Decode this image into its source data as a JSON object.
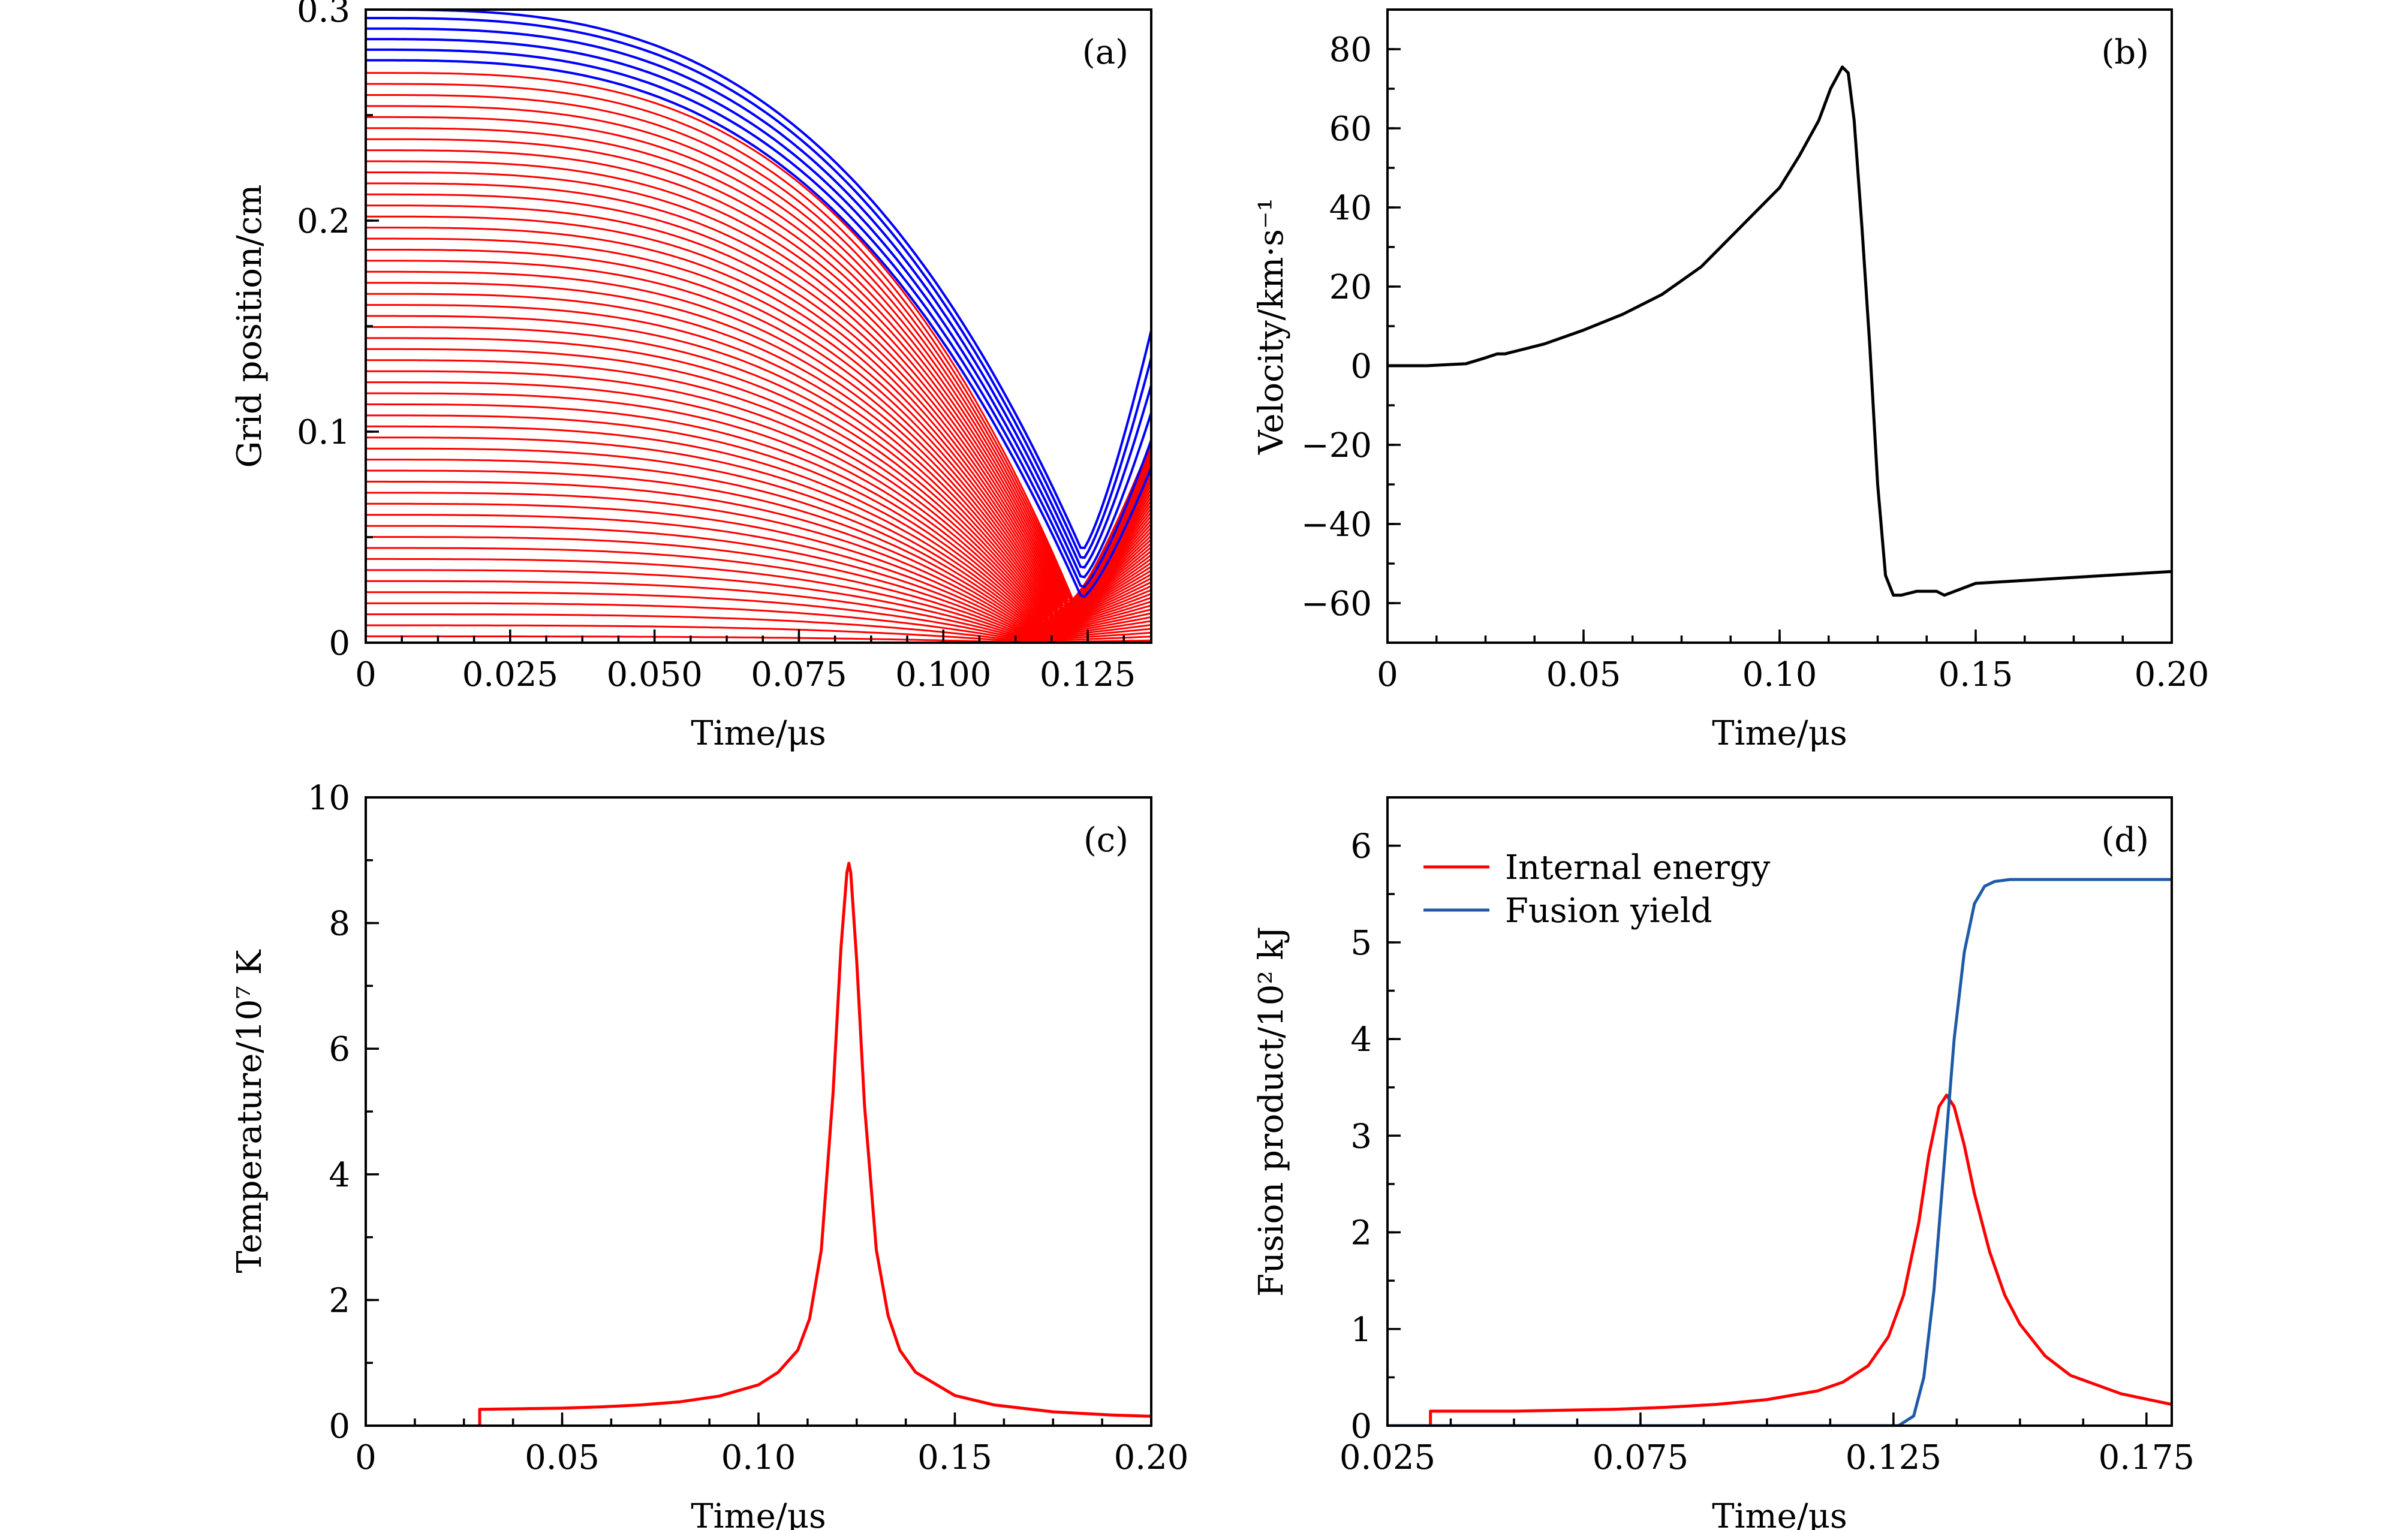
{
  "chart_data": [
    {
      "type": "line",
      "panel_label": "(a)",
      "xlabel": "Time/μs",
      "ylabel": "Grid position/cm",
      "xlim": [
        0,
        0.136
      ],
      "ylim": [
        0,
        0.3
      ],
      "xticks": [
        0,
        0.025,
        0.05,
        0.075,
        0.1,
        0.125
      ],
      "xtick_labels": [
        "0",
        "0.025",
        "0.050",
        "0.075",
        "0.100",
        "0.125"
      ],
      "yticks": [
        0,
        0.1,
        0.2,
        0.3
      ],
      "ytick_labels": [
        "0",
        "0.1",
        "0.2",
        "0.3"
      ],
      "series": [
        {
          "name": "fuel grid lines",
          "color": "#ff0000",
          "count": 52,
          "r0_range": [
            0.003,
            0.27
          ]
        },
        {
          "name": "liner grid lines",
          "color": "#0000ff",
          "r0": [
            0.276,
            0.281,
            0.286,
            0.291,
            0.296,
            0.3
          ]
        }
      ]
    },
    {
      "type": "line",
      "panel_label": "(b)",
      "xlabel": "Time/μs",
      "ylabel": "Velocity/km·s⁻¹",
      "xlim": [
        0,
        0.2
      ],
      "ylim": [
        -70,
        90
      ],
      "xticks": [
        0,
        0.05,
        0.1,
        0.15,
        0.2
      ],
      "xtick_labels": [
        "0",
        "0.05",
        "0.10",
        "0.15",
        "0.20"
      ],
      "yticks": [
        -60,
        -40,
        -20,
        0,
        20,
        40,
        60,
        80
      ],
      "ytick_labels": [
        "−60",
        "−40",
        "−20",
        "0",
        "20",
        "40",
        "60",
        "80"
      ],
      "series": [
        {
          "name": "velocity",
          "color": "#000000",
          "x": [
            0,
            0.01,
            0.02,
            0.025,
            0.028,
            0.03,
            0.04,
            0.05,
            0.06,
            0.07,
            0.08,
            0.09,
            0.1,
            0.105,
            0.11,
            0.113,
            0.116,
            0.1175,
            0.119,
            0.121,
            0.123,
            0.125,
            0.127,
            0.129,
            0.131,
            0.135,
            0.14,
            0.142,
            0.15,
            0.175,
            0.2
          ],
          "y": [
            0,
            0,
            0.5,
            2,
            3,
            3,
            5.5,
            9,
            13,
            18,
            25,
            35,
            45,
            53,
            62,
            70,
            75.5,
            74,
            62,
            35,
            5,
            -30,
            -53,
            -58,
            -58,
            -57,
            -57,
            -58,
            -55,
            -53.5,
            -52
          ]
        }
      ]
    },
    {
      "type": "line",
      "panel_label": "(c)",
      "xlabel": "Time/μs",
      "ylabel": "Temperature/10⁷ K",
      "xlim": [
        0,
        0.2
      ],
      "ylim": [
        0,
        10
      ],
      "xticks": [
        0,
        0.05,
        0.1,
        0.15,
        0.2
      ],
      "xtick_labels": [
        "0",
        "0.05",
        "0.10",
        "0.15",
        "0.20"
      ],
      "yticks": [
        0,
        2,
        4,
        6,
        8,
        10
      ],
      "ytick_labels": [
        "0",
        "2",
        "4",
        "6",
        "8",
        "10"
      ],
      "series": [
        {
          "name": "temperature",
          "color": "#ff0000",
          "x": [
            0.029,
            0.029,
            0.04,
            0.05,
            0.06,
            0.07,
            0.08,
            0.09,
            0.1,
            0.105,
            0.11,
            0.113,
            0.116,
            0.119,
            0.121,
            0.1225,
            0.123,
            0.1235,
            0.125,
            0.127,
            0.13,
            0.133,
            0.136,
            0.14,
            0.15,
            0.16,
            0.175,
            0.19,
            0.2
          ],
          "y": [
            0,
            0.26,
            0.27,
            0.28,
            0.3,
            0.33,
            0.38,
            0.47,
            0.65,
            0.85,
            1.2,
            1.7,
            2.8,
            5.3,
            7.6,
            8.8,
            8.95,
            8.8,
            7.4,
            5.1,
            2.8,
            1.75,
            1.2,
            0.85,
            0.48,
            0.33,
            0.22,
            0.17,
            0.15
          ]
        }
      ]
    },
    {
      "type": "line",
      "panel_label": "(d)",
      "xlabel": "Time/μs",
      "ylabel": "Fusion product/10² kJ",
      "xlim": [
        0.025,
        0.18
      ],
      "ylim": [
        0,
        6.5
      ],
      "xticks": [
        0.025,
        0.075,
        0.125,
        0.175
      ],
      "xtick_labels": [
        "0.025",
        "0.075",
        "0.125",
        "0.175"
      ],
      "yticks": [
        0,
        1,
        2,
        3,
        4,
        5,
        6
      ],
      "ytick_labels": [
        "0",
        "1",
        "2",
        "3",
        "4",
        "5",
        "6"
      ],
      "legend": "top-left",
      "series": [
        {
          "name": "Internal energy",
          "color": "#ff0000",
          "x": [
            0.0335,
            0.0335,
            0.05,
            0.07,
            0.08,
            0.09,
            0.1,
            0.11,
            0.115,
            0.12,
            0.124,
            0.127,
            0.13,
            0.132,
            0.134,
            0.1355,
            0.137,
            0.139,
            0.141,
            0.144,
            0.147,
            0.15,
            0.155,
            0.16,
            0.17,
            0.18
          ],
          "y": [
            0,
            0.15,
            0.15,
            0.17,
            0.19,
            0.22,
            0.27,
            0.36,
            0.45,
            0.62,
            0.92,
            1.35,
            2.1,
            2.8,
            3.3,
            3.42,
            3.3,
            2.9,
            2.4,
            1.8,
            1.35,
            1.05,
            0.72,
            0.52,
            0.33,
            0.22
          ]
        },
        {
          "name": "Fusion yield",
          "color": "#1f5aa6",
          "x": [
            0.025,
            0.126,
            0.129,
            0.131,
            0.133,
            0.135,
            0.137,
            0.139,
            0.141,
            0.143,
            0.145,
            0.148,
            0.155,
            0.18
          ],
          "y": [
            0,
            0,
            0.1,
            0.5,
            1.4,
            2.7,
            4.0,
            4.9,
            5.4,
            5.58,
            5.63,
            5.65,
            5.65,
            5.65
          ]
        }
      ]
    }
  ]
}
